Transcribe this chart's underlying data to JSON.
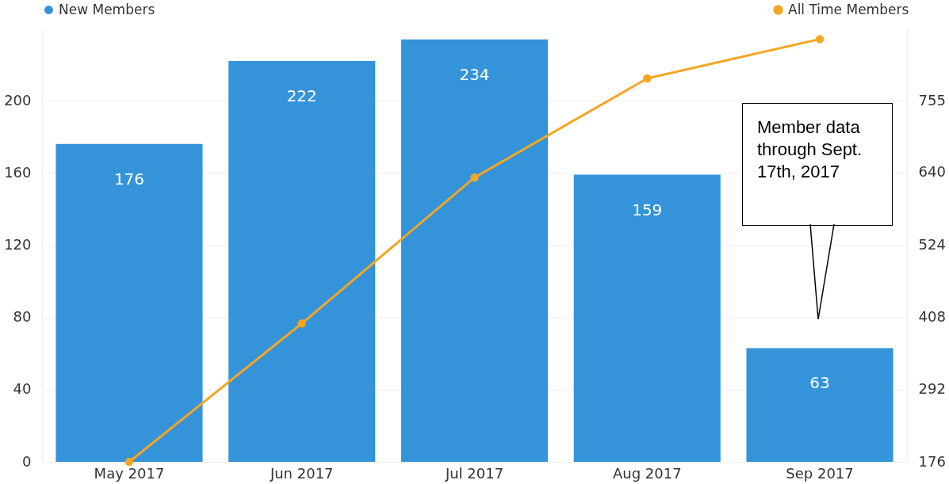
{
  "chart_data": {
    "type": "bar",
    "categories": [
      "May 2017",
      "Jun 2017",
      "Jul 2017",
      "Aug 2017",
      "Sep 2017"
    ],
    "series": [
      {
        "name": "New Members",
        "color": "#3593d9",
        "values": [
          176,
          222,
          234,
          159,
          63
        ],
        "value_labels": [
          "176",
          "222",
          "234",
          "159",
          "63"
        ]
      },
      {
        "name": "All Time Members",
        "type": "line",
        "axis": "y2",
        "color": "#f5a623",
        "values": [
          176,
          398,
          632,
          791,
          854
        ]
      }
    ],
    "ylim": [
      0,
      240
    ],
    "yticks": [
      0,
      40,
      80,
      120,
      160,
      200
    ],
    "y2lim": [
      176,
      871
    ],
    "y2ticks": [
      176,
      292,
      408,
      524,
      640,
      755
    ],
    "grid": "y",
    "legend": "top",
    "marker": "circle",
    "annotations": [
      "Member data through Sept. 17th, 2017"
    ]
  }
}
